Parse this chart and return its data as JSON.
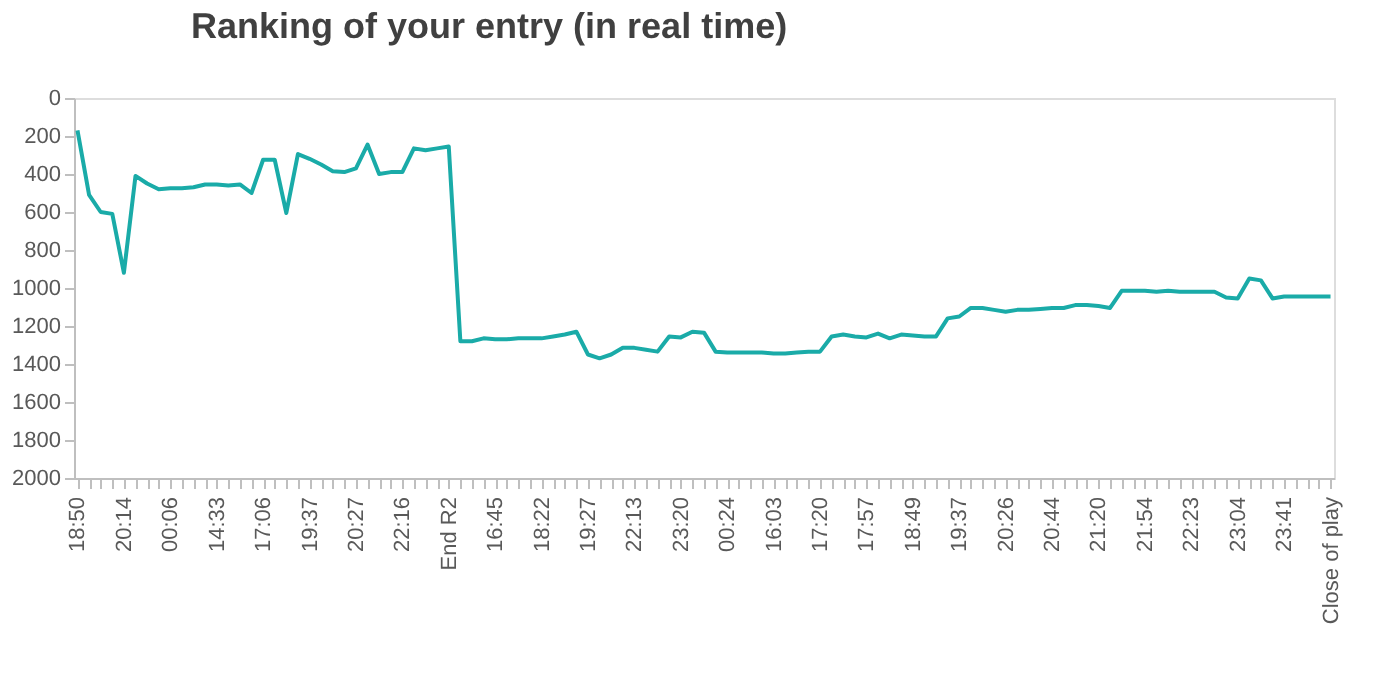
{
  "chart_data": {
    "type": "line",
    "title": "Ranking of your entry (in real time)",
    "categories": [
      "18:50",
      null,
      null,
      null,
      "20:14",
      null,
      null,
      null,
      "00:06",
      null,
      null,
      null,
      "14:33",
      null,
      null,
      null,
      "17:06",
      null,
      null,
      null,
      "19:37",
      null,
      null,
      null,
      "20:27",
      null,
      null,
      null,
      "22:16",
      null,
      null,
      null,
      "End R2",
      null,
      null,
      null,
      "16:45",
      null,
      null,
      null,
      "18:22",
      null,
      null,
      null,
      "19:27",
      null,
      null,
      null,
      "22:13",
      null,
      null,
      null,
      "23:20",
      null,
      null,
      null,
      "00:24",
      null,
      null,
      null,
      "16:03",
      null,
      null,
      null,
      "17:20",
      null,
      null,
      null,
      "17:57",
      null,
      null,
      null,
      "18:49",
      null,
      null,
      null,
      "19:37",
      null,
      null,
      null,
      "20:26",
      null,
      null,
      null,
      "20:44",
      null,
      null,
      null,
      "21:20",
      null,
      null,
      null,
      "21:54",
      null,
      null,
      null,
      "22:23",
      null,
      null,
      null,
      "23:04",
      null,
      null,
      null,
      "23:41",
      null,
      null,
      null,
      "Close of play"
    ],
    "series": [
      {
        "color": "#1aaba8",
        "values": [
          170,
          510,
          600,
          610,
          920,
          410,
          450,
          480,
          475,
          475,
          470,
          455,
          455,
          460,
          455,
          500,
          325,
          325,
          605,
          295,
          320,
          350,
          385,
          390,
          370,
          245,
          400,
          390,
          390,
          265,
          275,
          265,
          255,
          1280,
          1280,
          1265,
          1270,
          1270,
          1265,
          1265,
          1265,
          1255,
          1245,
          1230,
          1350,
          1370,
          1350,
          1315,
          1315,
          1325,
          1335,
          1255,
          1260,
          1230,
          1235,
          1335,
          1340,
          1340,
          1340,
          1340,
          1345,
          1345,
          1340,
          1335,
          1335,
          1255,
          1245,
          1255,
          1260,
          1240,
          1265,
          1245,
          1250,
          1255,
          1255,
          1160,
          1150,
          1105,
          1105,
          1115,
          1125,
          1115,
          1115,
          1110,
          1105,
          1105,
          1090,
          1090,
          1095,
          1105,
          1015,
          1015,
          1015,
          1020,
          1015,
          1020,
          1020,
          1020,
          1020,
          1050,
          1055,
          950,
          960,
          1055,
          1045,
          1045,
          1045,
          1045,
          1045
        ]
      }
    ],
    "ylim": [
      2000,
      0
    ],
    "yticks": [
      0,
      200,
      400,
      600,
      800,
      1000,
      1200,
      1400,
      1600,
      1800,
      2000
    ],
    "grid": false,
    "line_style": "solid",
    "marker": "none"
  }
}
